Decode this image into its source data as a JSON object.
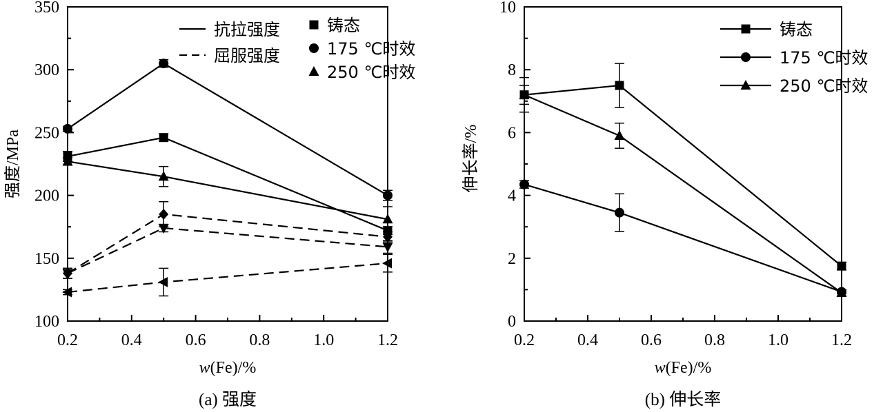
{
  "charts": [
    {
      "caption": "(a) 强度",
      "xlabel_italic": "w",
      "xlabel_rest": "(Fe)/%",
      "ylabel": "强度/MPa"
    },
    {
      "caption": "(b) 伸长率",
      "xlabel_italic": "w",
      "xlabel_rest": "(Fe)/%",
      "ylabel": "伸长率/%"
    }
  ],
  "chart_data": [
    {
      "type": "line",
      "title": "(a) 强度",
      "xlabel": "w(Fe)/%",
      "ylabel": "强度/MPa",
      "xlim": [
        0.2,
        1.2
      ],
      "ylim": [
        100,
        350
      ],
      "x_ticks": [
        "0.2",
        "0.4",
        "0.6",
        "0.8",
        "1.0",
        "1.2"
      ],
      "y_ticks": [
        "100",
        "150",
        "200",
        "250",
        "300",
        "350"
      ],
      "legend_line_styles": [
        {
          "label": "抗拉强度",
          "style": "solid"
        },
        {
          "label": "屈服强度",
          "style": "dashed"
        }
      ],
      "legend_markers": [
        {
          "label": "铸态",
          "marker": "square"
        },
        {
          "label": "175 ℃时效",
          "marker": "circle"
        },
        {
          "label": "250 ℃时效",
          "marker": "triangle-up"
        }
      ],
      "legend_position": "top-right",
      "grid": false,
      "series": [
        {
          "name": "抗拉强度 铸态",
          "style": "solid",
          "marker": "square",
          "x": [
            0.2,
            0.5,
            1.2
          ],
          "y": [
            231,
            246,
            172
          ],
          "err": [
            4,
            3,
            3
          ]
        },
        {
          "name": "抗拉强度 175 ℃时效",
          "style": "solid",
          "marker": "circle",
          "x": [
            0.2,
            0.5,
            1.2
          ],
          "y": [
            253,
            305,
            200
          ],
          "err": [
            2,
            3,
            4
          ]
        },
        {
          "name": "抗拉强度 250 ℃时效",
          "style": "solid",
          "marker": "triangle-up",
          "x": [
            0.2,
            0.5,
            1.2
          ],
          "y": [
            227,
            215,
            181
          ],
          "err": [
            3,
            8,
            10
          ]
        },
        {
          "name": "屈服强度 铸态",
          "style": "dashed",
          "marker": "triangle-down",
          "x": [
            0.2,
            0.5,
            1.2
          ],
          "y": [
            138,
            174,
            159
          ],
          "err": [
            4,
            3,
            5
          ]
        },
        {
          "name": "屈服强度 175 ℃时效",
          "style": "dashed",
          "marker": "diamond",
          "x": [
            0.2,
            0.5,
            1.2
          ],
          "y": [
            138,
            185,
            167
          ],
          "err": [
            4,
            10,
            4
          ]
        },
        {
          "name": "屈服强度 250 ℃时效",
          "style": "dashed",
          "marker": "triangle-left",
          "x": [
            0.2,
            0.5,
            1.2
          ],
          "y": [
            123,
            131,
            146
          ],
          "err": [
            2,
            11,
            7
          ]
        }
      ]
    },
    {
      "type": "line",
      "title": "(b) 伸长率",
      "xlabel": "w(Fe)/%",
      "ylabel": "伸长率/%",
      "xlim": [
        0.2,
        1.2
      ],
      "ylim": [
        0,
        10
      ],
      "x_ticks": [
        "0.2",
        "0.4",
        "0.6",
        "0.8",
        "1.0",
        "1.2"
      ],
      "y_ticks": [
        "0",
        "2",
        "4",
        "6",
        "8",
        "10"
      ],
      "legend_position": "top-right",
      "grid": false,
      "series": [
        {
          "name": "铸态",
          "marker": "square",
          "x": [
            0.2,
            0.5,
            1.2
          ],
          "y": [
            7.2,
            7.5,
            1.75
          ],
          "err": [
            0.55,
            0.7,
            0.12
          ]
        },
        {
          "name": "175 ℃时效",
          "marker": "circle",
          "x": [
            0.2,
            0.5,
            1.2
          ],
          "y": [
            4.35,
            3.45,
            0.93
          ],
          "err": [
            0.12,
            0.6,
            0.06
          ]
        },
        {
          "name": "250 ℃时效",
          "marker": "triangle-up",
          "x": [
            0.2,
            0.5,
            1.2
          ],
          "y": [
            7.2,
            5.9,
            0.9
          ],
          "err": [
            0.3,
            0.4,
            0.1
          ]
        }
      ]
    }
  ]
}
